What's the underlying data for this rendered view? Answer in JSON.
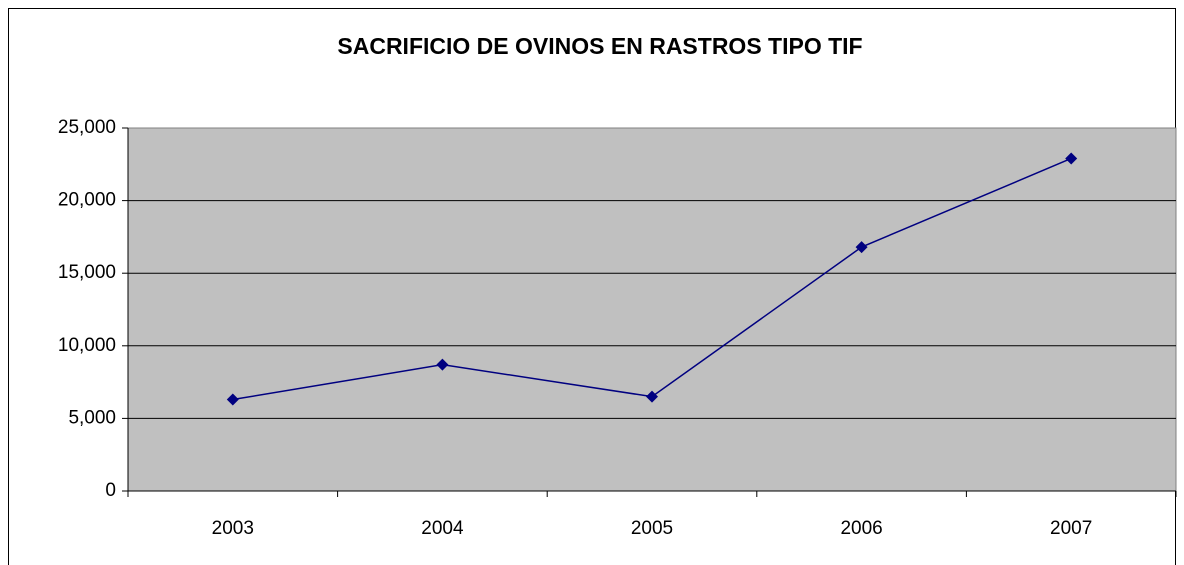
{
  "chart_data": {
    "type": "line",
    "title": "SACRIFICIO DE OVINOS EN RASTROS TIPO TIF",
    "categories": [
      "2003",
      "2004",
      "2005",
      "2006",
      "2007"
    ],
    "values": [
      6300,
      8700,
      6500,
      16800,
      22900
    ],
    "color": "#000080",
    "ylim": [
      0,
      25000
    ],
    "yticks": [
      0,
      {
        "value": 5000,
        "label": "5,000"
      },
      {
        "value": 10000,
        "label": "10,000"
      },
      {
        "value": 15000,
        "label": "15,000"
      },
      {
        "value": 20000,
        "label": "20,000"
      },
      {
        "value": 25000,
        "label": "25,000"
      }
    ],
    "grid": true
  }
}
